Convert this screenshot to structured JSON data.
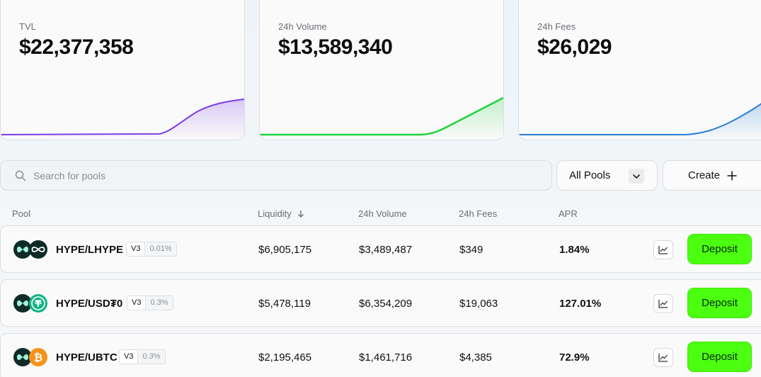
{
  "stats": [
    {
      "label": "TVL",
      "value": "$22,377,358",
      "color": "#7b3fe4"
    },
    {
      "label": "24h Volume",
      "value": "$13,589,340",
      "color": "#1fd13a"
    },
    {
      "label": "24h Fees",
      "value": "$26,029",
      "color": "#2b7fd4"
    }
  ],
  "search": {
    "placeholder": "Search for pools"
  },
  "filter": {
    "selected": "All Pools"
  },
  "create": {
    "label": "Create"
  },
  "table": {
    "headers": {
      "pool": "Pool",
      "liquidity": "Liquidity",
      "volume": "24h Volume",
      "fees": "24h Fees",
      "apr": "APR"
    },
    "rows": [
      {
        "pair": "HYPE/LHYPE",
        "version": "V3",
        "fee_tier": "0.01%",
        "liquidity": "$6,905,175",
        "volume": "$3,489,487",
        "fees": "$349",
        "apr": "1.84%",
        "deposit_label": "Deposit"
      },
      {
        "pair": "HYPE/USD₮0",
        "version": "V3",
        "fee_tier": "0.3%",
        "liquidity": "$5,478,119",
        "volume": "$6,354,209",
        "fees": "$19,063",
        "apr": "127.01%",
        "deposit_label": "Deposit"
      },
      {
        "pair": "HYPE/UBTC",
        "version": "V3",
        "fee_tier": "0.3%",
        "liquidity": "$2,195,465",
        "volume": "$1,461,716",
        "fees": "$4,385",
        "apr": "72.9%",
        "deposit_label": "Deposit"
      }
    ]
  },
  "colors": {
    "deposit": "#4cff11",
    "hype": "#0e2b28",
    "usdt": "#14b38a",
    "btc": "#f7931a"
  }
}
